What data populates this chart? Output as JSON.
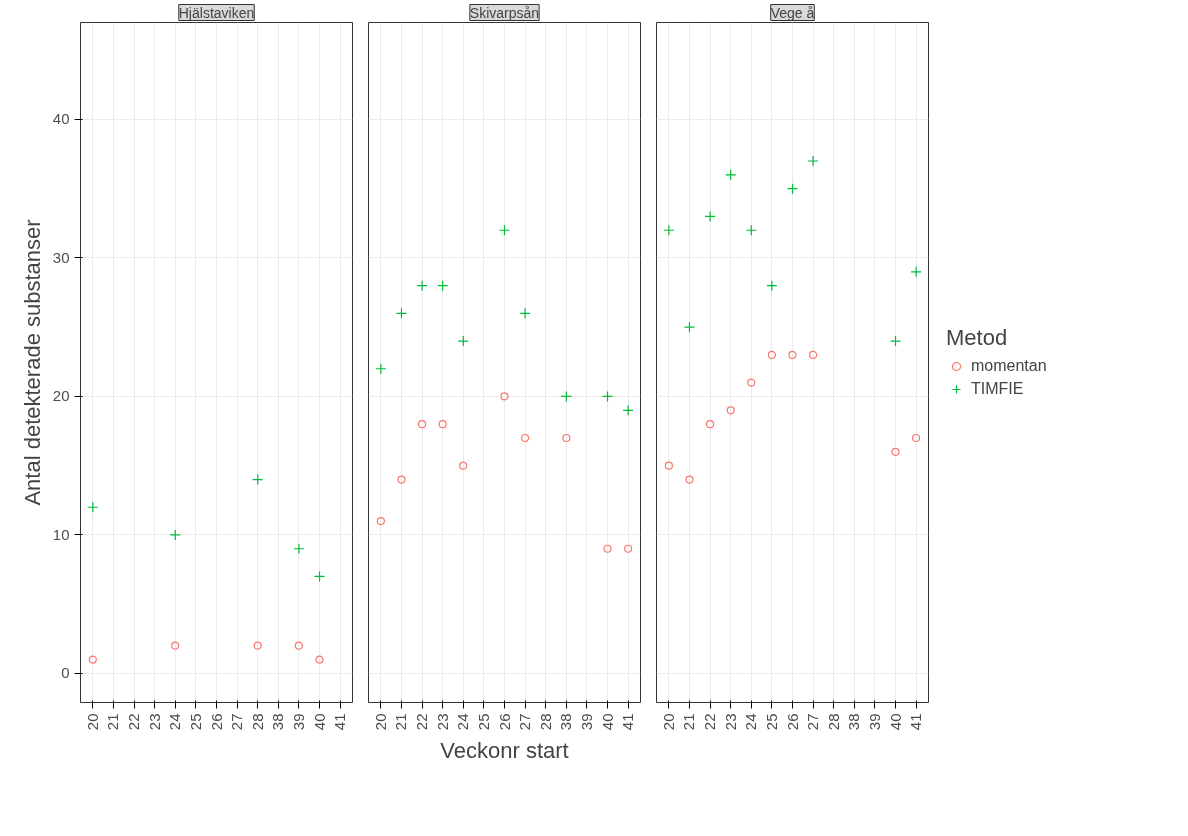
{
  "chart_data": [
    {
      "type": "scatter",
      "title": "Hjälstaviken",
      "ylabel": "Antal detekterade substanser",
      "categories": [
        "20",
        "21",
        "22",
        "23",
        "24",
        "25",
        "26",
        "27",
        "28",
        "38",
        "39",
        "40",
        "41"
      ],
      "series": [
        {
          "color": "#f8766d",
          "marker": "circle",
          "values": [
            1,
            null,
            null,
            null,
            2,
            null,
            null,
            null,
            2,
            null,
            2,
            1,
            null
          ]
        },
        {
          "color": "#00ba38",
          "marker": "cross",
          "values": [
            12,
            null,
            null,
            null,
            10,
            null,
            null,
            null,
            14,
            null,
            9,
            7,
            null
          ]
        }
      ],
      "ylim": [
        -2.1,
        47
      ],
      "yticks": [
        0,
        10,
        20,
        30,
        40
      ],
      "grid": true
    },
    {
      "type": "scatter",
      "title": "Skivarpsån",
      "xlabel": "Veckonr start",
      "categories": [
        "20",
        "21",
        "22",
        "23",
        "24",
        "25",
        "26",
        "27",
        "28",
        "38",
        "39",
        "40",
        "41"
      ],
      "series": [
        {
          "color": "#f8766d",
          "marker": "circle",
          "values": [
            11,
            14,
            18,
            18,
            15,
            null,
            20,
            17,
            null,
            17,
            null,
            9,
            9
          ]
        },
        {
          "color": "#00ba38",
          "marker": "cross",
          "values": [
            22,
            26,
            28,
            28,
            24,
            null,
            32,
            26,
            null,
            20,
            null,
            20,
            19
          ]
        }
      ],
      "ylim": [
        -2.1,
        47
      ],
      "yticks": [
        0,
        10,
        20,
        30,
        40
      ],
      "grid": true,
      "tick_labels": "x"
    },
    {
      "type": "scatter",
      "title": "Vege å",
      "legend_title": "Metod",
      "categories": [
        "20",
        "21",
        "22",
        "23",
        "24",
        "25",
        "26",
        "27",
        "28",
        "38",
        "39",
        "40",
        "41"
      ],
      "series": [
        {
          "name": "momentan",
          "color": "#f8766d",
          "marker": "circle",
          "values": [
            15,
            14,
            18,
            19,
            21,
            23,
            23,
            23,
            null,
            null,
            null,
            16,
            17
          ]
        },
        {
          "name": "TIMFIE",
          "color": "#00ba38",
          "marker": "cross",
          "values": [
            32,
            25,
            33,
            36,
            32,
            28,
            35,
            37,
            null,
            null,
            null,
            24,
            29
          ]
        }
      ],
      "ylim": [
        -2.1,
        47
      ],
      "yticks": [
        0,
        10,
        20,
        30,
        40
      ],
      "grid": true,
      "legend": "right",
      "tick_labels": "x"
    }
  ]
}
